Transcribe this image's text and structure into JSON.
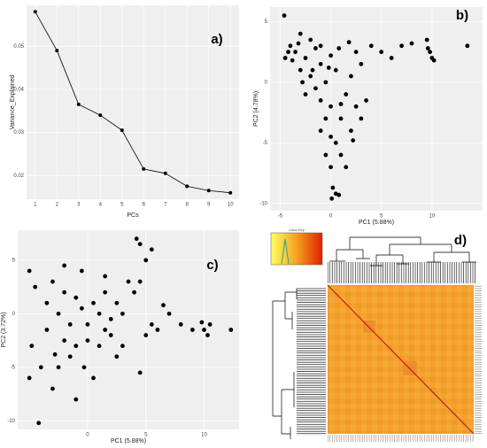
{
  "chart_data": [
    {
      "type": "line",
      "panel_label": "a)",
      "x_label": "PCs",
      "y_label": "Variance_Explained",
      "x": [
        1,
        2,
        3,
        4,
        5,
        6,
        7,
        8,
        9,
        10
      ],
      "values": [
        0.058,
        0.049,
        0.0365,
        0.034,
        0.0305,
        0.0215,
        0.0205,
        0.0175,
        0.0165,
        0.016
      ],
      "color": "#000000",
      "xlim": [
        0.6,
        10.4
      ],
      "ylim": [
        0.0145,
        0.0595
      ],
      "xticks": [
        1,
        2,
        3,
        4,
        5,
        6,
        7,
        8,
        9,
        10
      ],
      "yticks": [
        0.02,
        0.03,
        0.04,
        0.05
      ],
      "grid": true
    },
    {
      "type": "scatter",
      "panel_label": "b)",
      "x_label": "PC1 (5.88%)",
      "y_label": "PC2 (4.78%)",
      "x": [
        -4.6,
        -4,
        -3.5,
        -4.5,
        -3,
        -2,
        -2.5,
        -1.5,
        -1,
        -3,
        -2,
        -1,
        0,
        0.5,
        -0.5,
        -1.5,
        -2.5,
        -1,
        0,
        -0.5,
        -1,
        0,
        0.5,
        1,
        1.5,
        2,
        2.5,
        3,
        2.5,
        3,
        2,
        1,
        1.5,
        0.2,
        0.5,
        0.8,
        0.1,
        -3.8,
        -4.2,
        -3.2,
        -2.8,
        4,
        5,
        6,
        7,
        8,
        9.5,
        9.8,
        10,
        10.2,
        9.6,
        13.5,
        3.5,
        1,
        -0.2,
        -1.8,
        0.8,
        1.8,
        -0.5,
        0,
        2.2
      ],
      "values": [
        5.5,
        3,
        2.5,
        2,
        4,
        3.5,
        2,
        2.8,
        1.5,
        1,
        0.5,
        3,
        2.2,
        1,
        0,
        -0.5,
        -1,
        -1.5,
        -2,
        -3,
        -4,
        -4.5,
        -5,
        -3,
        -1,
        0.5,
        2.5,
        1.5,
        -2,
        -3,
        -4,
        -6,
        -7,
        -8.7,
        -9.2,
        -9.3,
        -9.6,
        1.8,
        2.5,
        3.2,
        0,
        3,
        2.5,
        2,
        3,
        3.2,
        3.5,
        2.5,
        2,
        1.8,
        2.8,
        3,
        -1.5,
        -1.8,
        1.2,
        1,
        2.8,
        3.3,
        -6,
        -7,
        -4.8
      ],
      "color": "#000000",
      "xlim": [
        -6,
        15
      ],
      "ylim": [
        -10.6,
        6.2
      ],
      "xticks": [
        -5,
        0,
        5,
        10
      ],
      "yticks": [
        -10,
        -5,
        0,
        5
      ],
      "grid": true
    },
    {
      "type": "scatter",
      "panel_label": "c)",
      "x_label": "PC1 (5.88%)",
      "y_label": "PC2 (3.72%)",
      "x": [
        -5,
        -4.5,
        -4.8,
        -5,
        -4,
        -4.2,
        -3.5,
        -3,
        -2.5,
        -2,
        -1.5,
        -1,
        -0.5,
        0,
        0.5,
        1,
        1.5,
        2,
        2.5,
        -2,
        -1.5,
        -1,
        0,
        1,
        1.5,
        -3,
        -2.5,
        2,
        3,
        3.5,
        4,
        4.2,
        4.5,
        5,
        5.5,
        4.5,
        3,
        5,
        5.5,
        4.5,
        6,
        7,
        8,
        9,
        10,
        10.5,
        10.3,
        9.8,
        12.3,
        -0.5,
        -2,
        0.5,
        -1,
        2.5,
        -3.5,
        1.5,
        -2.8,
        6.5,
        -0.3
      ],
      "values": [
        4,
        2.5,
        -3,
        -6,
        -5,
        -10.2,
        1,
        3,
        0,
        2,
        -1,
        1.5,
        0.5,
        -1,
        1,
        0,
        2,
        -0.5,
        1,
        -2.5,
        -4,
        -3,
        -2.5,
        -3,
        -1.5,
        -7,
        -5,
        -2,
        -3,
        3,
        2,
        7,
        6.5,
        5,
        6,
        3,
        0,
        -2,
        -1,
        -5.5,
        -1.5,
        0,
        -1,
        -1.5,
        -1.5,
        -1,
        -2,
        -0.8,
        -1.5,
        4,
        4.5,
        -6,
        -8,
        -4,
        -1.5,
        3.5,
        -3.8,
        0.8,
        -5
      ],
      "color": "#000000",
      "xlim": [
        -6,
        13
      ],
      "ylim": [
        -10.8,
        7.8
      ],
      "xticks": [
        0,
        5,
        10
      ],
      "yticks": [
        -10,
        -5,
        0,
        5
      ],
      "grid": true
    },
    {
      "type": "heatmap",
      "panel_label": "d)",
      "key_title": "Color Key"
    }
  ]
}
